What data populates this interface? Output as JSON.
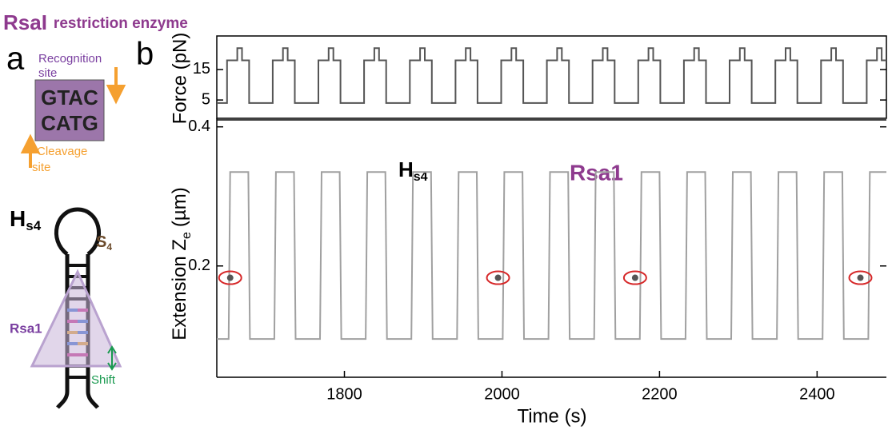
{
  "figure": {
    "title_main": "RsaI",
    "title_sub": "restriction enzyme",
    "panel_a": "a",
    "panel_b": "b"
  },
  "diagram": {
    "recognition": [
      "Recognition",
      "site"
    ],
    "sequence": [
      "GTAC",
      "CATG"
    ],
    "cleavage": [
      "Cleavage",
      "site"
    ],
    "hairpin": {
      "main": "H",
      "sub": "s4"
    },
    "stem": {
      "main": "S",
      "sub": "4"
    },
    "enzyme": "Rsa1",
    "shift": "Shift"
  },
  "chart_data": [
    {
      "type": "line",
      "y_label": "Force (pN)",
      "color": "#555555",
      "xlim": [
        1638,
        2488
      ],
      "ylim": [
        -1,
        26
      ],
      "yticks": [
        5,
        15
      ],
      "x": [
        1638,
        1651,
        1651,
        1664,
        1664,
        1670,
        1670,
        1679,
        1679,
        1709,
        1709,
        1722,
        1722,
        1728,
        1728,
        1737,
        1737,
        1767,
        1767,
        1780,
        1780,
        1786,
        1786,
        1795,
        1795,
        1825,
        1825,
        1838,
        1838,
        1844,
        1844,
        1853,
        1853,
        1883,
        1883,
        1896,
        1896,
        1902,
        1902,
        1911,
        1911,
        1941,
        1941,
        1954,
        1954,
        1960,
        1960,
        1969,
        1969,
        1999,
        1999,
        2012,
        2012,
        2018,
        2018,
        2027,
        2027,
        2057,
        2057,
        2070,
        2070,
        2076,
        2076,
        2085,
        2085,
        2115,
        2115,
        2128,
        2128,
        2134,
        2134,
        2143,
        2143,
        2173,
        2173,
        2186,
        2186,
        2192,
        2192,
        2201,
        2201,
        2231,
        2231,
        2244,
        2244,
        2250,
        2250,
        2259,
        2259,
        2289,
        2289,
        2302,
        2302,
        2308,
        2308,
        2317,
        2317,
        2347,
        2347,
        2360,
        2360,
        2366,
        2366,
        2375,
        2375,
        2405,
        2405,
        2418,
        2418,
        2424,
        2424,
        2433,
        2433,
        2463,
        2463,
        2476,
        2476,
        2482,
        2482,
        2488
      ],
      "values": [
        4,
        4,
        18,
        18,
        22,
        22,
        18,
        18,
        4,
        4,
        18,
        18,
        22,
        22,
        18,
        18,
        4,
        4,
        18,
        18,
        22,
        22,
        18,
        18,
        4,
        4,
        18,
        18,
        22,
        22,
        18,
        18,
        4,
        4,
        18,
        18,
        22,
        22,
        18,
        18,
        4,
        4,
        18,
        18,
        22,
        22,
        18,
        18,
        4,
        4,
        18,
        18,
        22,
        22,
        18,
        18,
        4,
        4,
        18,
        18,
        22,
        22,
        18,
        18,
        4,
        4,
        18,
        18,
        22,
        22,
        18,
        18,
        4,
        4,
        18,
        18,
        22,
        22,
        18,
        18,
        4,
        4,
        18,
        18,
        22,
        22,
        18,
        18,
        4,
        4,
        18,
        18,
        22,
        22,
        18,
        18,
        4,
        4,
        18,
        18,
        22,
        22,
        18,
        18,
        4,
        4,
        18,
        18,
        22,
        22,
        18,
        18,
        4,
        4,
        18,
        18,
        22,
        22,
        18,
        18
      ]
    },
    {
      "type": "line",
      "y_label": {
        "main": "Extension Z",
        "sub": "e",
        "unit": "(µm)"
      },
      "x_label": "Time (s)",
      "color": "#a0a0a0",
      "xlim": [
        1638,
        2488
      ],
      "ylim": [
        0.04,
        0.41
      ],
      "xticks": [
        1800,
        2000,
        2200,
        2400
      ],
      "yticks": [
        0.2,
        0.4
      ],
      "annotations": {
        "hairpin": {
          "main": "H",
          "sub": "s4"
        },
        "enzyme": "Rsa1"
      },
      "x": [
        1638,
        1653,
        1655,
        1678,
        1680,
        1711,
        1713,
        1736,
        1738,
        1769,
        1771,
        1794,
        1796,
        1827,
        1829,
        1852,
        1854,
        1885,
        1887,
        1910,
        1912,
        1943,
        1945,
        1968,
        1970,
        2001,
        2003,
        2026,
        2028,
        2059,
        2061,
        2084,
        2086,
        2117,
        2119,
        2142,
        2144,
        2175,
        2177,
        2200,
        2202,
        2233,
        2235,
        2258,
        2260,
        2291,
        2293,
        2316,
        2318,
        2349,
        2351,
        2374,
        2376,
        2407,
        2409,
        2432,
        2434,
        2465,
        2467,
        2488
      ],
      "values": [
        0.095,
        0.095,
        0.335,
        0.335,
        0.095,
        0.095,
        0.335,
        0.335,
        0.095,
        0.095,
        0.335,
        0.335,
        0.095,
        0.095,
        0.335,
        0.335,
        0.095,
        0.095,
        0.335,
        0.335,
        0.095,
        0.095,
        0.335,
        0.335,
        0.095,
        0.095,
        0.335,
        0.335,
        0.095,
        0.095,
        0.335,
        0.335,
        0.095,
        0.095,
        0.335,
        0.335,
        0.095,
        0.095,
        0.335,
        0.335,
        0.095,
        0.095,
        0.335,
        0.335,
        0.095,
        0.095,
        0.335,
        0.335,
        0.095,
        0.095,
        0.335,
        0.335,
        0.095,
        0.095,
        0.335,
        0.335,
        0.095,
        0.095,
        0.335,
        0.335
      ],
      "events": {
        "x": [
          1655,
          1995,
          2169,
          2455
        ],
        "y": [
          0.183,
          0.183,
          0.183,
          0.183
        ],
        "color": "#d62728"
      }
    }
  ]
}
